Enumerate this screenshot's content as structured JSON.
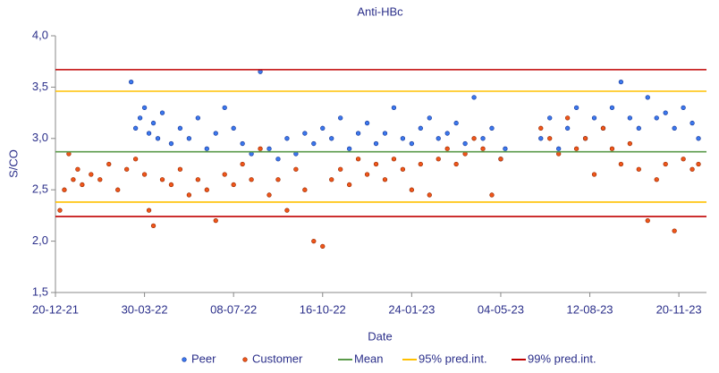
{
  "chart_data": {
    "type": "scatter",
    "title": "Anti-HBc",
    "xlabel": "Date",
    "ylabel": "S/CO",
    "xlim": [
      0,
      731
    ],
    "xticks": [
      {
        "value": 0,
        "label": "20-12-21"
      },
      {
        "value": 100,
        "label": "30-03-22"
      },
      {
        "value": 200,
        "label": "08-07-22"
      },
      {
        "value": 300,
        "label": "16-10-22"
      },
      {
        "value": 400,
        "label": "24-01-23"
      },
      {
        "value": 500,
        "label": "04-05-23"
      },
      {
        "value": 600,
        "label": "12-08-23"
      },
      {
        "value": 700,
        "label": "20-11-23"
      }
    ],
    "ylim": [
      1.5,
      4.0
    ],
    "yticks": [
      {
        "value": 1.5,
        "label": "1,5"
      },
      {
        "value": 2.0,
        "label": "2,0"
      },
      {
        "value": 2.5,
        "label": "2,5"
      },
      {
        "value": 3.0,
        "label": "3,0"
      },
      {
        "value": 3.5,
        "label": "3,5"
      },
      {
        "value": 4.0,
        "label": "4,0"
      }
    ],
    "series": [
      {
        "name": "Peer",
        "color": "#3b78ee",
        "edge": "#1a3a9a",
        "x": [
          85,
          90,
          95,
          100,
          105,
          110,
          115,
          120,
          130,
          140,
          150,
          160,
          170,
          180,
          190,
          200,
          210,
          220,
          230,
          240,
          250,
          260,
          270,
          280,
          290,
          300,
          310,
          320,
          330,
          340,
          350,
          360,
          370,
          380,
          390,
          400,
          410,
          420,
          430,
          440,
          450,
          460,
          470,
          480,
          490,
          500,
          505,
          545,
          555,
          565,
          575,
          585,
          595,
          605,
          615,
          625,
          635,
          645,
          655,
          665,
          675,
          685,
          695,
          705,
          715,
          722
        ],
        "values": [
          3.55,
          3.1,
          3.2,
          3.3,
          3.05,
          3.15,
          3.0,
          3.25,
          2.95,
          3.1,
          3.0,
          3.2,
          2.9,
          3.05,
          3.3,
          3.1,
          2.95,
          2.85,
          3.65,
          2.9,
          2.8,
          3.0,
          2.85,
          3.05,
          2.95,
          3.1,
          3.0,
          3.2,
          2.9,
          3.05,
          3.15,
          2.95,
          3.05,
          3.3,
          3.0,
          2.95,
          3.1,
          3.2,
          3.0,
          3.05,
          3.15,
          2.95,
          3.4,
          3.0,
          3.1,
          2.8,
          2.9,
          3.0,
          3.2,
          2.9,
          3.1,
          3.3,
          3.0,
          3.2,
          3.1,
          3.3,
          3.55,
          3.2,
          3.1,
          3.4,
          3.2,
          3.25,
          3.1,
          3.3,
          3.15,
          3.0
        ]
      },
      {
        "name": "Customer",
        "color": "#f0561a",
        "edge": "#9a2a00",
        "x": [
          5,
          10,
          15,
          20,
          25,
          30,
          40,
          50,
          60,
          70,
          80,
          90,
          100,
          105,
          110,
          120,
          130,
          140,
          150,
          160,
          170,
          180,
          190,
          200,
          210,
          220,
          230,
          240,
          250,
          260,
          270,
          280,
          290,
          300,
          310,
          320,
          330,
          340,
          350,
          360,
          370,
          380,
          390,
          400,
          410,
          420,
          430,
          440,
          450,
          460,
          470,
          480,
          490,
          500,
          545,
          555,
          565,
          575,
          585,
          595,
          605,
          615,
          625,
          635,
          645,
          655,
          665,
          675,
          685,
          695,
          705,
          715,
          722
        ],
        "values": [
          2.3,
          2.5,
          2.85,
          2.6,
          2.7,
          2.55,
          2.65,
          2.6,
          2.75,
          2.5,
          2.7,
          2.8,
          2.65,
          2.3,
          2.15,
          2.6,
          2.55,
          2.7,
          2.45,
          2.6,
          2.5,
          2.2,
          2.65,
          2.55,
          2.75,
          2.6,
          2.9,
          2.45,
          2.6,
          2.3,
          2.7,
          2.5,
          2.0,
          1.95,
          2.6,
          2.7,
          2.55,
          2.8,
          2.65,
          2.75,
          2.6,
          2.8,
          2.7,
          2.5,
          2.75,
          2.45,
          2.8,
          2.9,
          2.75,
          2.85,
          3.0,
          2.9,
          2.45,
          2.8,
          3.1,
          3.0,
          2.85,
          3.2,
          2.9,
          3.0,
          2.65,
          3.1,
          2.9,
          2.75,
          2.95,
          2.7,
          2.2,
          2.6,
          2.75,
          2.1,
          2.8,
          2.7,
          2.75
        ]
      }
    ],
    "reference_lines": [
      {
        "name": "Mean",
        "color": "#5a9a4a",
        "values": [
          2.87
        ]
      },
      {
        "name": "95% pred.int.",
        "color": "#ffc000",
        "values": [
          3.46,
          2.38
        ]
      },
      {
        "name": "99% pred.int.",
        "color": "#c00000",
        "values": [
          3.67,
          2.24
        ]
      }
    ]
  }
}
